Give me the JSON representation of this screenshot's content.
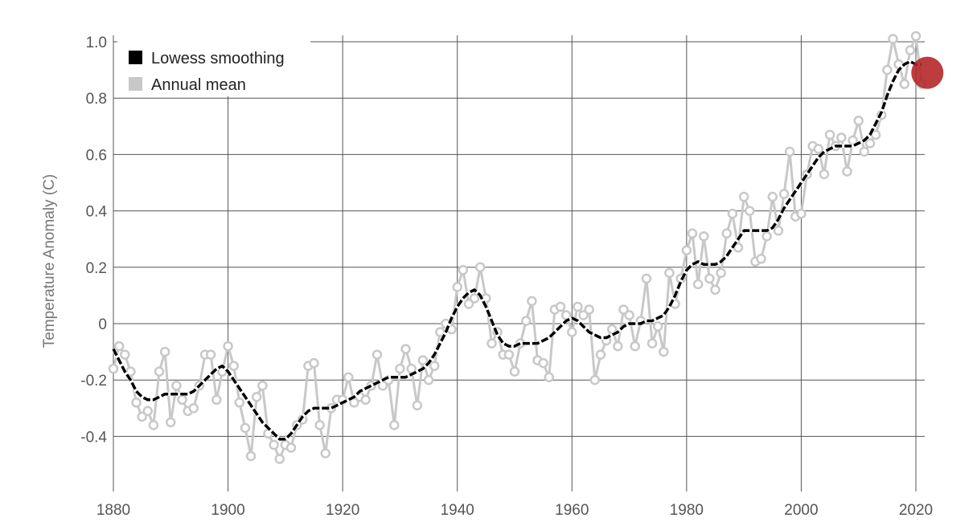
{
  "chart_data": {
    "type": "line",
    "title": "",
    "xlabel": "",
    "ylabel": "Temperature Anomaly (C)",
    "xlim": [
      1880,
      2022
    ],
    "ylim": [
      -0.55,
      1.05
    ],
    "x_ticks": [
      1880,
      1900,
      1920,
      1940,
      1960,
      1980,
      2000,
      2020
    ],
    "x_tick_labels": [
      "1880",
      "1900",
      "1920",
      "1940",
      "1960",
      "1980",
      "2000",
      "2020"
    ],
    "y_ticks": [
      -0.4,
      -0.2,
      0,
      0.2,
      0.4,
      0.6,
      0.8,
      1.0
    ],
    "y_tick_labels": [
      "-0.4",
      "-0.2",
      "0",
      "0.2",
      "0.4",
      "0.6",
      "0.8",
      "1.0"
    ],
    "grid": true,
    "legend": {
      "position": "top-left",
      "entries": [
        {
          "label": "Lowess smoothing",
          "color": "#000000"
        },
        {
          "label": "Annual mean",
          "color": "#c8c8c8"
        }
      ]
    },
    "x": [
      1880,
      1881,
      1882,
      1883,
      1884,
      1885,
      1886,
      1887,
      1888,
      1889,
      1890,
      1891,
      1892,
      1893,
      1894,
      1895,
      1896,
      1897,
      1898,
      1899,
      1900,
      1901,
      1902,
      1903,
      1904,
      1905,
      1906,
      1907,
      1908,
      1909,
      1910,
      1911,
      1912,
      1913,
      1914,
      1915,
      1916,
      1917,
      1918,
      1919,
      1920,
      1921,
      1922,
      1923,
      1924,
      1925,
      1926,
      1927,
      1928,
      1929,
      1930,
      1931,
      1932,
      1933,
      1934,
      1935,
      1936,
      1937,
      1938,
      1939,
      1940,
      1941,
      1942,
      1943,
      1944,
      1945,
      1946,
      1947,
      1948,
      1949,
      1950,
      1951,
      1952,
      1953,
      1954,
      1955,
      1956,
      1957,
      1958,
      1959,
      1960,
      1961,
      1962,
      1963,
      1964,
      1965,
      1966,
      1967,
      1968,
      1969,
      1970,
      1971,
      1972,
      1973,
      1974,
      1975,
      1976,
      1977,
      1978,
      1979,
      1980,
      1981,
      1982,
      1983,
      1984,
      1985,
      1986,
      1987,
      1988,
      1989,
      1990,
      1991,
      1992,
      1993,
      1994,
      1995,
      1996,
      1997,
      1998,
      1999,
      2000,
      2001,
      2002,
      2003,
      2004,
      2005,
      2006,
      2007,
      2008,
      2009,
      2010,
      2011,
      2012,
      2013,
      2014,
      2015,
      2016,
      2017,
      2018,
      2019,
      2020,
      2021
    ],
    "series": [
      {
        "name": "Annual mean",
        "color": "#c8c8c8",
        "values": [
          -0.16,
          -0.08,
          -0.11,
          -0.17,
          -0.28,
          -0.33,
          -0.31,
          -0.36,
          -0.17,
          -0.1,
          -0.35,
          -0.22,
          -0.27,
          -0.31,
          -0.3,
          -0.22,
          -0.11,
          -0.11,
          -0.27,
          -0.17,
          -0.08,
          -0.15,
          -0.28,
          -0.37,
          -0.47,
          -0.26,
          -0.22,
          -0.39,
          -0.43,
          -0.48,
          -0.43,
          -0.44,
          -0.36,
          -0.34,
          -0.15,
          -0.14,
          -0.36,
          -0.46,
          -0.3,
          -0.27,
          -0.27,
          -0.19,
          -0.28,
          -0.26,
          -0.27,
          -0.22,
          -0.11,
          -0.22,
          -0.2,
          -0.36,
          -0.16,
          -0.09,
          -0.16,
          -0.29,
          -0.13,
          -0.2,
          -0.15,
          -0.03,
          0.0,
          -0.02,
          0.13,
          0.19,
          0.07,
          0.09,
          0.2,
          0.09,
          -0.07,
          -0.03,
          -0.11,
          -0.11,
          -0.17,
          -0.07,
          0.01,
          0.08,
          -0.13,
          -0.14,
          -0.19,
          0.05,
          0.06,
          0.03,
          -0.03,
          0.06,
          0.03,
          0.05,
          -0.2,
          -0.11,
          -0.06,
          -0.02,
          -0.08,
          0.05,
          0.03,
          -0.08,
          0.01,
          0.16,
          -0.07,
          -0.01,
          -0.1,
          0.18,
          0.07,
          0.16,
          0.26,
          0.32,
          0.14,
          0.31,
          0.16,
          0.12,
          0.18,
          0.32,
          0.39,
          0.27,
          0.45,
          0.4,
          0.22,
          0.23,
          0.31,
          0.45,
          0.33,
          0.46,
          0.61,
          0.38,
          0.39,
          0.53,
          0.63,
          0.62,
          0.53,
          0.67,
          0.63,
          0.66,
          0.54,
          0.65,
          0.72,
          0.61,
          0.64,
          0.67,
          0.74,
          0.9,
          1.01,
          0.92,
          0.85,
          0.97,
          1.02,
          0.85
        ]
      },
      {
        "name": "Lowess smoothing",
        "color": "#000000",
        "values": [
          -0.09,
          -0.13,
          -0.17,
          -0.2,
          -0.24,
          -0.26,
          -0.27,
          -0.27,
          -0.26,
          -0.25,
          -0.25,
          -0.25,
          -0.25,
          -0.25,
          -0.24,
          -0.22,
          -0.2,
          -0.18,
          -0.16,
          -0.15,
          -0.17,
          -0.2,
          -0.23,
          -0.26,
          -0.29,
          -0.32,
          -0.35,
          -0.37,
          -0.39,
          -0.41,
          -0.41,
          -0.39,
          -0.36,
          -0.33,
          -0.31,
          -0.3,
          -0.3,
          -0.3,
          -0.3,
          -0.29,
          -0.28,
          -0.27,
          -0.26,
          -0.24,
          -0.23,
          -0.22,
          -0.21,
          -0.2,
          -0.19,
          -0.19,
          -0.19,
          -0.19,
          -0.18,
          -0.17,
          -0.16,
          -0.14,
          -0.11,
          -0.07,
          -0.03,
          0.02,
          0.06,
          0.09,
          0.11,
          0.12,
          0.1,
          0.06,
          0.01,
          -0.04,
          -0.07,
          -0.08,
          -0.08,
          -0.07,
          -0.07,
          -0.07,
          -0.07,
          -0.06,
          -0.05,
          -0.03,
          -0.01,
          0.01,
          0.02,
          0.01,
          -0.01,
          -0.03,
          -0.04,
          -0.05,
          -0.05,
          -0.04,
          -0.03,
          -0.01,
          0.0,
          0.0,
          0.0,
          0.01,
          0.01,
          0.02,
          0.03,
          0.06,
          0.1,
          0.15,
          0.19,
          0.21,
          0.22,
          0.21,
          0.21,
          0.21,
          0.22,
          0.24,
          0.27,
          0.3,
          0.33,
          0.33,
          0.33,
          0.33,
          0.33,
          0.34,
          0.37,
          0.41,
          0.44,
          0.47,
          0.5,
          0.53,
          0.56,
          0.59,
          0.61,
          0.62,
          0.63,
          0.63,
          0.63,
          0.63,
          0.64,
          0.65,
          0.67,
          0.71,
          0.75,
          0.81,
          0.86,
          0.9,
          0.92,
          0.93,
          0.92,
          0.92
        ]
      }
    ],
    "highlight": {
      "x": 2022,
      "y": 0.89,
      "color": "#b22222"
    }
  }
}
